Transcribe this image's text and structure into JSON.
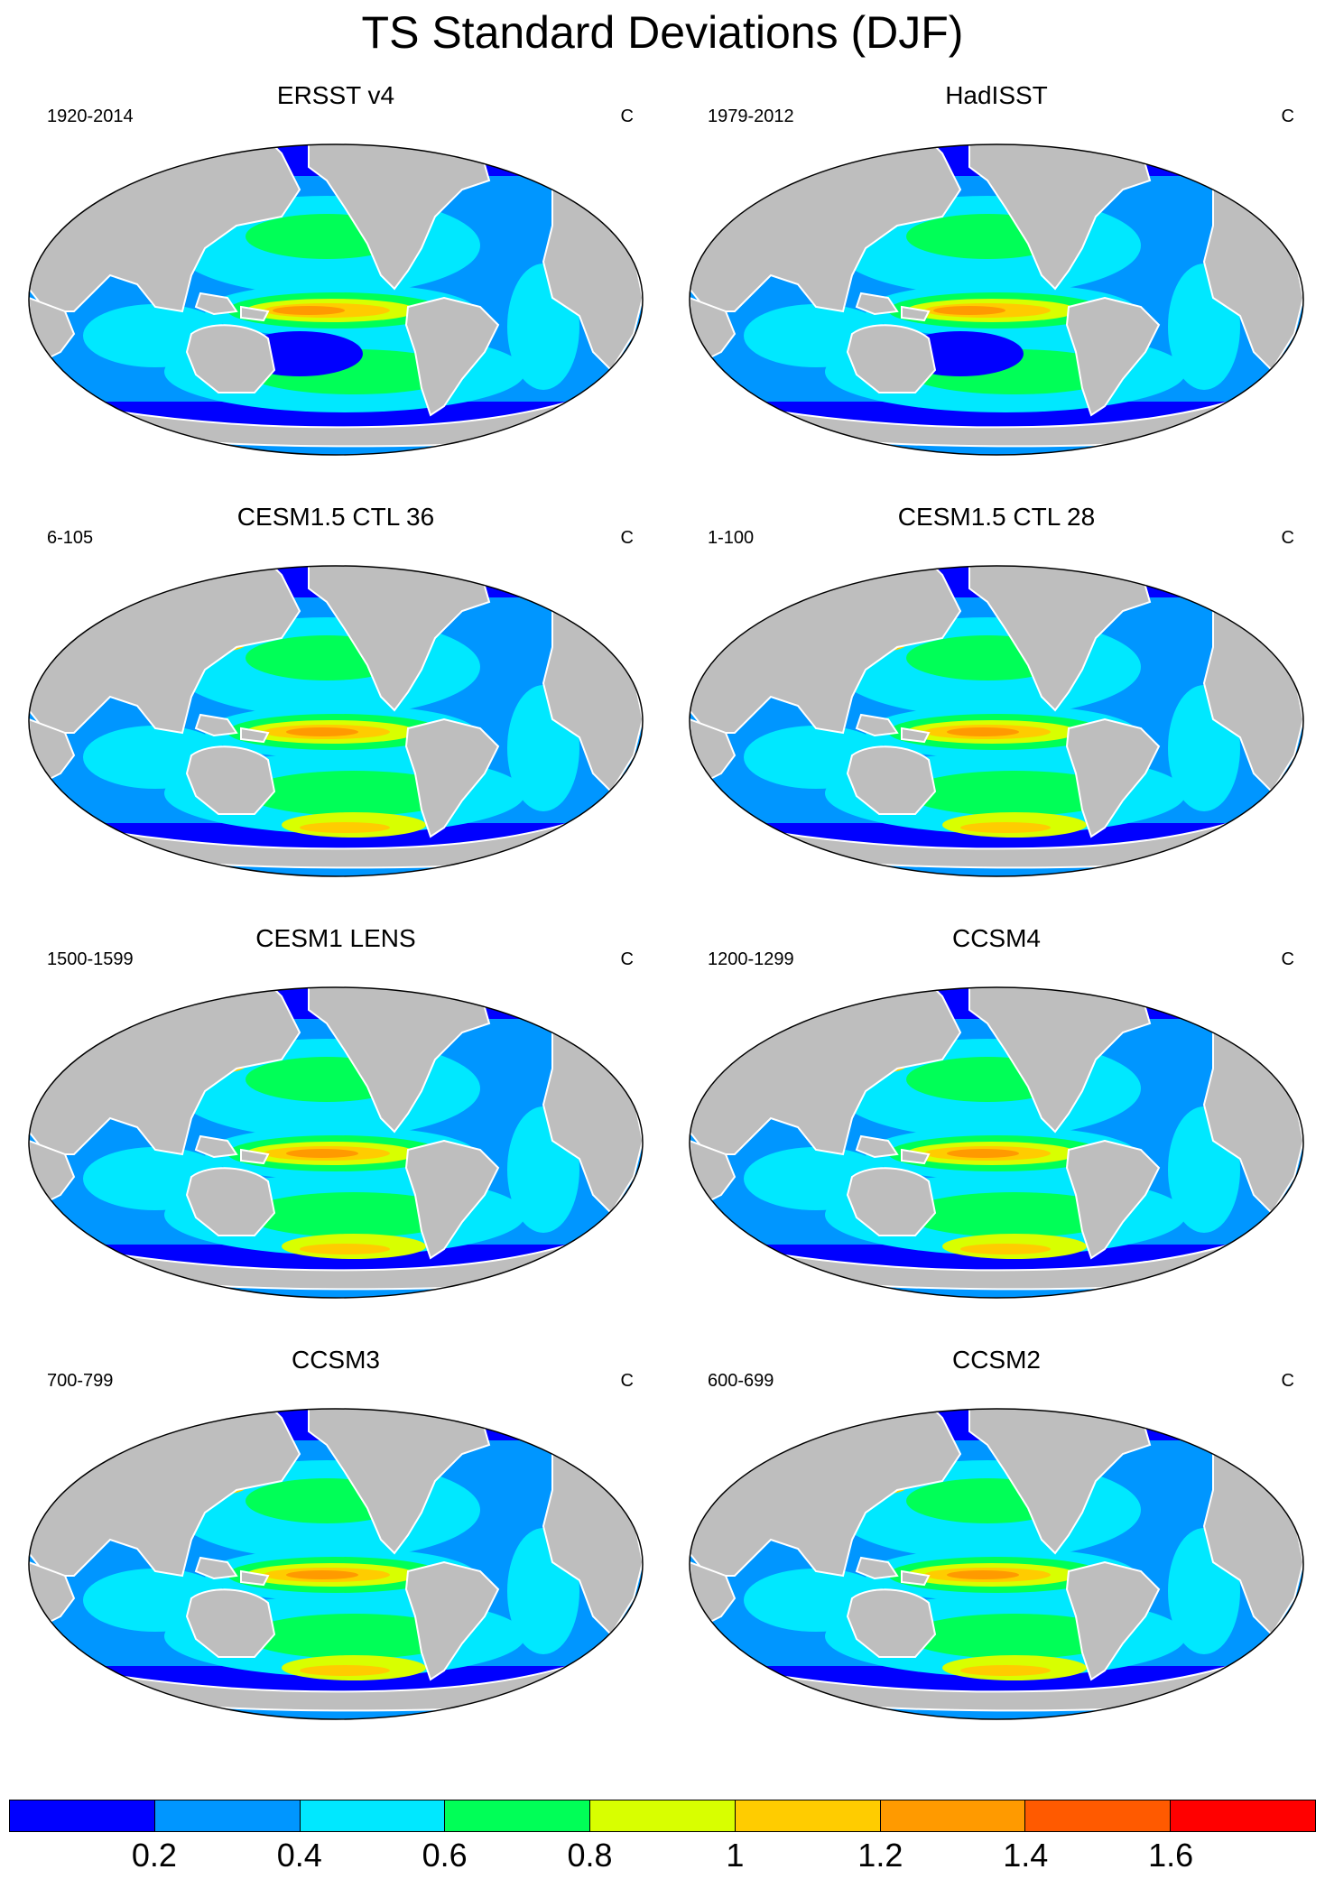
{
  "title": "TS Standard Deviations (DJF)",
  "units": "C",
  "panels": [
    {
      "title": "ERSST v4",
      "period": "1920-2014",
      "style": "obs"
    },
    {
      "title": "HadISST",
      "period": "1979-2012",
      "style": "obs"
    },
    {
      "title": "CESM1.5 CTL 36",
      "period": "6-105",
      "style": "model"
    },
    {
      "title": "CESM1.5 CTL 28",
      "period": "1-100",
      "style": "model"
    },
    {
      "title": "CESM1 LENS",
      "period": "1500-1599",
      "style": "model"
    },
    {
      "title": "CCSM4",
      "period": "1200-1299",
      "style": "model"
    },
    {
      "title": "CCSM3",
      "period": "700-799",
      "style": "model"
    },
    {
      "title": "CCSM2",
      "period": "600-699",
      "style": "model"
    }
  ],
  "colorbar": {
    "colors": [
      "#0000ff",
      "#0096ff",
      "#00e8ff",
      "#00ff57",
      "#d8ff00",
      "#ffcc00",
      "#ff9a00",
      "#ff5a00",
      "#ff0000"
    ],
    "labels": [
      "0.2",
      "0.4",
      "0.6",
      "0.8",
      "1",
      "1.2",
      "1.4",
      "1.6"
    ]
  },
  "colors": {
    "land": "#bebebe",
    "coast": "#ffffff",
    "outline": "#000000"
  }
}
